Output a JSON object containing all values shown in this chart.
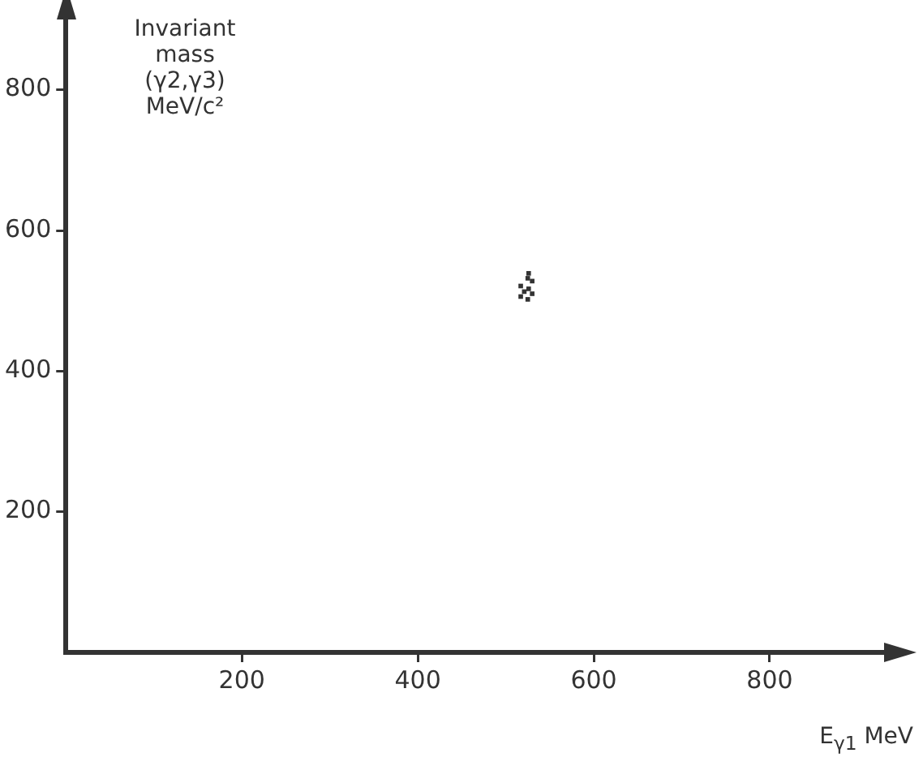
{
  "chart_data": {
    "type": "scatter",
    "xlabel": "E$_{γ1}$ MeV",
    "ylabel": "Invariant mass (γ2,γ3) MeV/c²",
    "x": [
      526,
      525,
      530,
      517,
      521,
      526,
      530,
      517,
      525
    ],
    "series": [
      {
        "color": "#333333",
        "values": [
          539,
          532,
          528,
          521,
          513,
          517,
          510,
          506,
          502
        ]
      }
    ],
    "xlim": [
      0,
      930
    ],
    "xticks": [
      200,
      400,
      600,
      800
    ],
    "ylim": [
      0,
      900
    ],
    "yticks": [
      200,
      400,
      600,
      800
    ],
    "grid": false,
    "legend": false,
    "marker": "square"
  }
}
